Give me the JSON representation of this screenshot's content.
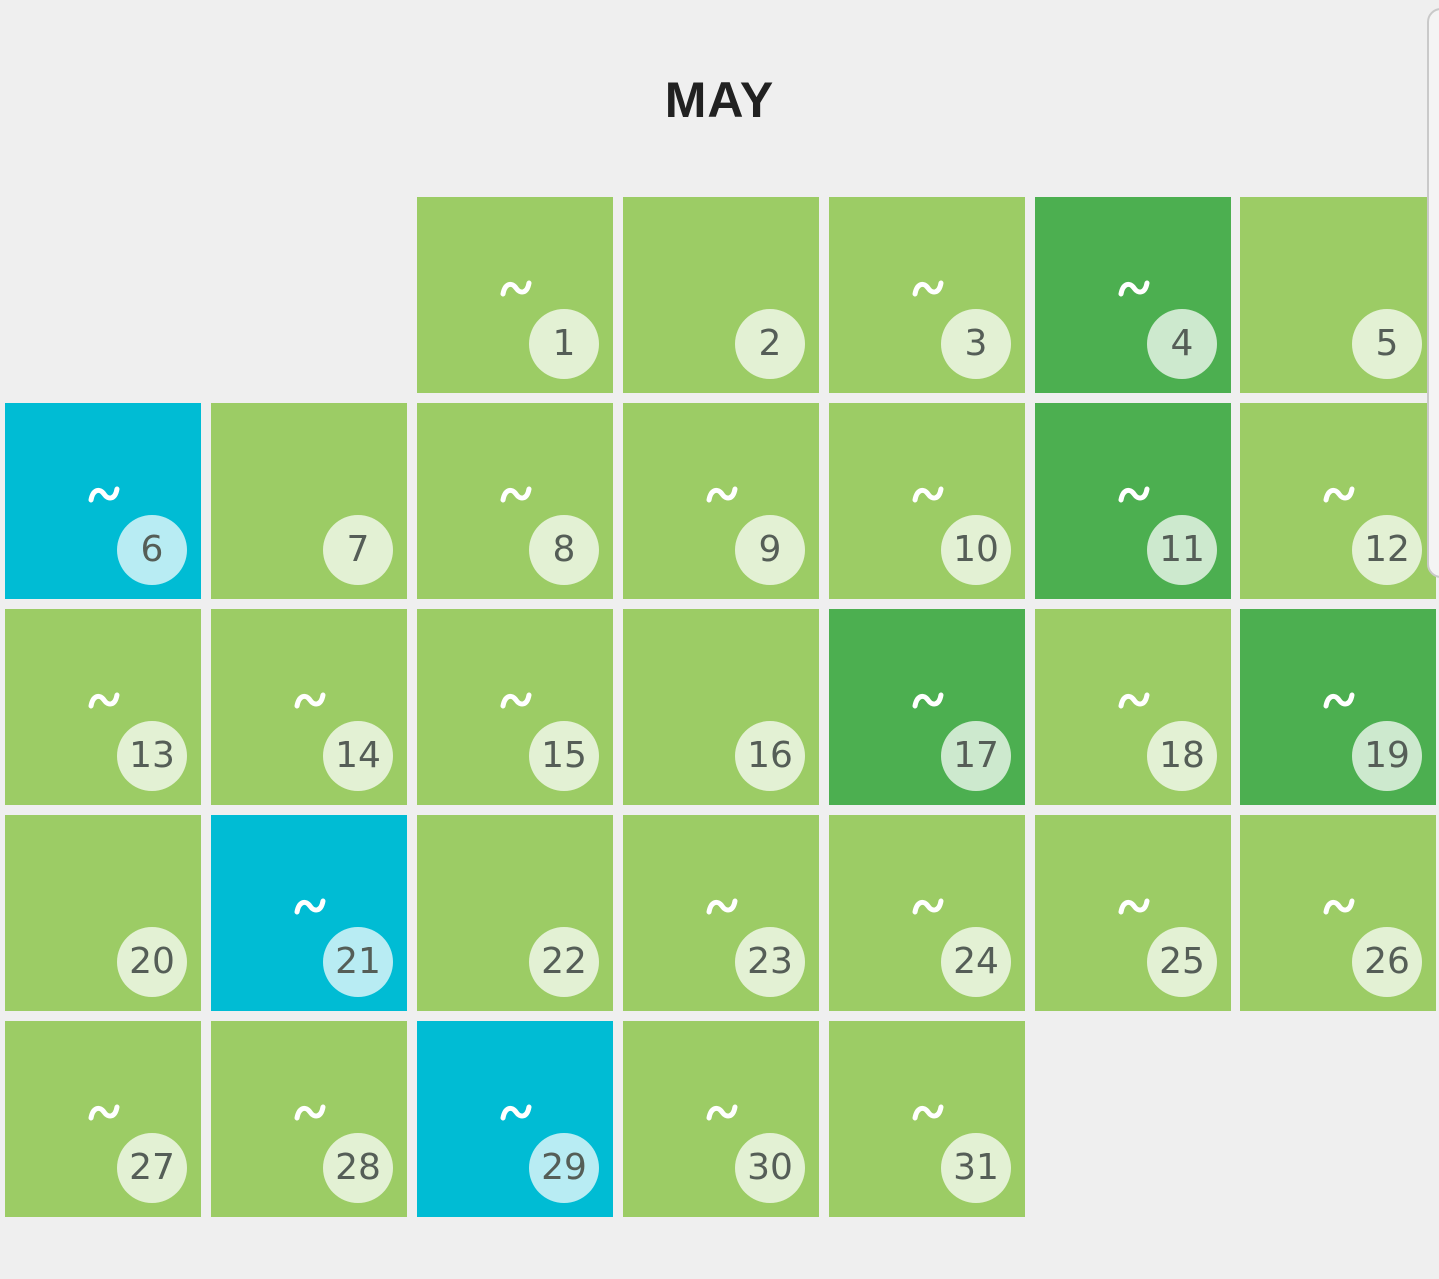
{
  "month": "MAY",
  "colors": {
    "background": "#efefef",
    "level_light": "#9ccc65",
    "level_dark": "#4caf50",
    "level_highlight": "#00bcd4"
  },
  "icon_names": {
    "entry_marker": "tilde-icon"
  },
  "days": [
    {
      "day": "1",
      "weekday_index": 2,
      "week": 0,
      "level": "light",
      "has_entry": true
    },
    {
      "day": "2",
      "weekday_index": 3,
      "week": 0,
      "level": "light",
      "has_entry": false
    },
    {
      "day": "3",
      "weekday_index": 4,
      "week": 0,
      "level": "light",
      "has_entry": true
    },
    {
      "day": "4",
      "weekday_index": 5,
      "week": 0,
      "level": "dark",
      "has_entry": true
    },
    {
      "day": "5",
      "weekday_index": 6,
      "week": 0,
      "level": "light",
      "has_entry": false
    },
    {
      "day": "6",
      "weekday_index": 0,
      "week": 1,
      "level": "highlight",
      "has_entry": true
    },
    {
      "day": "7",
      "weekday_index": 1,
      "week": 1,
      "level": "light",
      "has_entry": false
    },
    {
      "day": "8",
      "weekday_index": 2,
      "week": 1,
      "level": "light",
      "has_entry": true
    },
    {
      "day": "9",
      "weekday_index": 3,
      "week": 1,
      "level": "light",
      "has_entry": true
    },
    {
      "day": "10",
      "weekday_index": 4,
      "week": 1,
      "level": "light",
      "has_entry": true
    },
    {
      "day": "11",
      "weekday_index": 5,
      "week": 1,
      "level": "dark",
      "has_entry": true
    },
    {
      "day": "12",
      "weekday_index": 6,
      "week": 1,
      "level": "light",
      "has_entry": true
    },
    {
      "day": "13",
      "weekday_index": 0,
      "week": 2,
      "level": "light",
      "has_entry": true
    },
    {
      "day": "14",
      "weekday_index": 1,
      "week": 2,
      "level": "light",
      "has_entry": true
    },
    {
      "day": "15",
      "weekday_index": 2,
      "week": 2,
      "level": "light",
      "has_entry": true
    },
    {
      "day": "16",
      "weekday_index": 3,
      "week": 2,
      "level": "light",
      "has_entry": false
    },
    {
      "day": "17",
      "weekday_index": 4,
      "week": 2,
      "level": "dark",
      "has_entry": true
    },
    {
      "day": "18",
      "weekday_index": 5,
      "week": 2,
      "level": "light",
      "has_entry": true
    },
    {
      "day": "19",
      "weekday_index": 6,
      "week": 2,
      "level": "dark",
      "has_entry": true
    },
    {
      "day": "20",
      "weekday_index": 0,
      "week": 3,
      "level": "light",
      "has_entry": false
    },
    {
      "day": "21",
      "weekday_index": 1,
      "week": 3,
      "level": "highlight",
      "has_entry": true
    },
    {
      "day": "22",
      "weekday_index": 2,
      "week": 3,
      "level": "light",
      "has_entry": false
    },
    {
      "day": "23",
      "weekday_index": 3,
      "week": 3,
      "level": "light",
      "has_entry": true
    },
    {
      "day": "24",
      "weekday_index": 4,
      "week": 3,
      "level": "light",
      "has_entry": true
    },
    {
      "day": "25",
      "weekday_index": 5,
      "week": 3,
      "level": "light",
      "has_entry": true
    },
    {
      "day": "26",
      "weekday_index": 6,
      "week": 3,
      "level": "light",
      "has_entry": true
    },
    {
      "day": "27",
      "weekday_index": 0,
      "week": 4,
      "level": "light",
      "has_entry": true
    },
    {
      "day": "28",
      "weekday_index": 1,
      "week": 4,
      "level": "light",
      "has_entry": true
    },
    {
      "day": "29",
      "weekday_index": 2,
      "week": 4,
      "level": "highlight",
      "has_entry": true
    },
    {
      "day": "30",
      "weekday_index": 3,
      "week": 4,
      "level": "light",
      "has_entry": true
    },
    {
      "day": "31",
      "weekday_index": 4,
      "week": 4,
      "level": "light",
      "has_entry": true
    }
  ]
}
